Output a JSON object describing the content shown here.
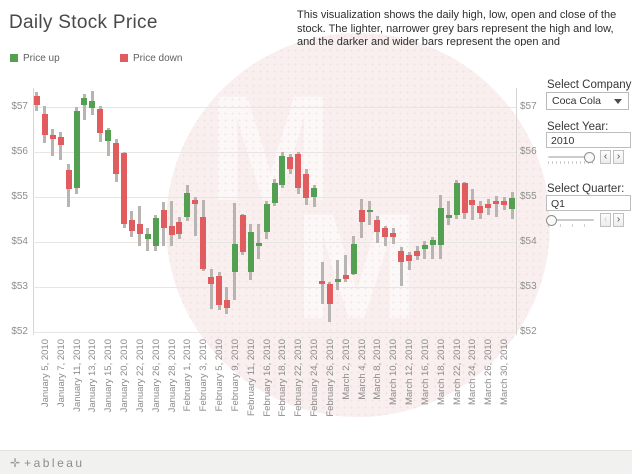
{
  "title": "Daily Stock Price",
  "description": "This visualization shows the daily high, low, open and close of the stock. The lighter, narrower grey bars represent the high and low, and the darker and wider bars represent the open and",
  "legend": {
    "up_label": "Price up",
    "down_label": "Price down"
  },
  "controls": {
    "company": {
      "label": "Select Company:",
      "value": "Coca Cola"
    },
    "year": {
      "label": "Select Year:",
      "value": "2010"
    },
    "quarter": {
      "label": "Select Quarter:",
      "value": "Q1"
    }
  },
  "icons": {
    "chevron_left": "‹",
    "chevron_right": "›"
  },
  "watermark": {
    "letter": "M"
  },
  "footer": {
    "logo_mark": "✛",
    "logo_word": "+ableau"
  },
  "chart_data": {
    "type": "candlestick",
    "title": "Daily Stock Price",
    "xlabel": "",
    "ylabel": "",
    "grid": true,
    "ylim": [
      51.9,
      57.6
    ],
    "y_ticks": [
      "$57",
      "$56",
      "$55",
      "$54",
      "$53",
      "$52"
    ],
    "colors": {
      "up": "#53a053",
      "down": "#e05c5e",
      "high_low": "#b8b4b1"
    },
    "legend": [
      {
        "label": "Price up",
        "color": "#53a053"
      },
      {
        "label": "Price down",
        "color": "#e05c5e"
      }
    ],
    "x_tick_labels": [
      "January 5, 2010",
      "January 7, 2010",
      "January 11, 2010",
      "January 13, 2010",
      "January 15, 2010",
      "January 20, 2010",
      "January 22, 2010",
      "January 26, 2010",
      "January 28, 2010",
      "February 1, 2010",
      "February 3, 2010",
      "February 5, 2010",
      "February 9, 2010",
      "February 11, 2010",
      "February 16, 2010",
      "February 18, 2010",
      "February 22, 2010",
      "February 24, 2010",
      "February 26, 2010",
      "March 2, 2010",
      "March 4, 2010",
      "March 8, 2010",
      "March 10, 2010",
      "March 12, 2010",
      "March 16, 2010",
      "March 18, 2010",
      "March 22, 2010",
      "March 24, 2010",
      "March 26, 2010",
      "March 30, 2010"
    ],
    "candles": [
      {
        "date": "January 4, 2010",
        "open": 57.24,
        "high": 57.33,
        "low": 56.91,
        "close": 57.04
      },
      {
        "date": "January 5, 2010",
        "open": 56.84,
        "high": 57.02,
        "low": 56.18,
        "close": 56.36
      },
      {
        "date": "January 6, 2010",
        "open": 56.37,
        "high": 56.5,
        "low": 55.9,
        "close": 56.27
      },
      {
        "date": "January 7, 2010",
        "open": 56.33,
        "high": 56.43,
        "low": 55.8,
        "close": 56.15
      },
      {
        "date": "January 8, 2010",
        "open": 55.58,
        "high": 55.73,
        "low": 54.76,
        "close": 55.17
      },
      {
        "date": "January 11, 2010",
        "open": 55.18,
        "high": 57.0,
        "low": 55.05,
        "close": 56.9
      },
      {
        "date": "January 12, 2010",
        "open": 57.04,
        "high": 57.28,
        "low": 56.7,
        "close": 57.2
      },
      {
        "date": "January 13, 2010",
        "open": 56.97,
        "high": 57.34,
        "low": 56.8,
        "close": 57.13
      },
      {
        "date": "January 14, 2010",
        "open": 56.94,
        "high": 57.02,
        "low": 56.2,
        "close": 56.4
      },
      {
        "date": "January 15, 2010",
        "open": 56.24,
        "high": 56.52,
        "low": 55.9,
        "close": 56.47
      },
      {
        "date": "January 19, 2010",
        "open": 56.18,
        "high": 56.27,
        "low": 55.32,
        "close": 55.5
      },
      {
        "date": "January 20, 2010",
        "open": 55.96,
        "high": 56.0,
        "low": 54.3,
        "close": 54.39
      },
      {
        "date": "January 21, 2010",
        "open": 54.47,
        "high": 54.67,
        "low": 54.11,
        "close": 54.24
      },
      {
        "date": "January 22, 2010",
        "open": 54.39,
        "high": 54.78,
        "low": 53.89,
        "close": 54.16
      },
      {
        "date": "January 25, 2010",
        "open": 54.05,
        "high": 54.31,
        "low": 53.78,
        "close": 54.16
      },
      {
        "date": "January 26, 2010",
        "open": 53.89,
        "high": 54.6,
        "low": 53.8,
        "close": 54.52
      },
      {
        "date": "January 27, 2010",
        "open": 54.71,
        "high": 54.87,
        "low": 53.89,
        "close": 54.31
      },
      {
        "date": "January 28, 2010",
        "open": 54.35,
        "high": 54.91,
        "low": 53.91,
        "close": 54.15
      },
      {
        "date": "January 29, 2010",
        "open": 54.44,
        "high": 54.55,
        "low": 54.05,
        "close": 54.16
      },
      {
        "date": "February 1, 2010",
        "open": 54.54,
        "high": 55.25,
        "low": 54.45,
        "close": 55.07
      },
      {
        "date": "February 2, 2010",
        "open": 54.92,
        "high": 54.98,
        "low": 54.13,
        "close": 54.83
      },
      {
        "date": "February 3, 2010",
        "open": 54.54,
        "high": 54.93,
        "low": 53.35,
        "close": 53.39
      },
      {
        "date": "February 4, 2010",
        "open": 53.21,
        "high": 53.39,
        "low": 52.5,
        "close": 53.06
      },
      {
        "date": "February 5, 2010",
        "open": 53.24,
        "high": 53.32,
        "low": 52.47,
        "close": 52.58
      },
      {
        "date": "February 8, 2010",
        "open": 52.7,
        "high": 53.0,
        "low": 52.4,
        "close": 52.52
      },
      {
        "date": "February 9, 2010",
        "open": 53.33,
        "high": 54.85,
        "low": 52.7,
        "close": 53.94
      },
      {
        "date": "February 10, 2010",
        "open": 54.58,
        "high": 54.62,
        "low": 53.7,
        "close": 53.76
      },
      {
        "date": "February 11, 2010",
        "open": 53.33,
        "high": 54.4,
        "low": 53.15,
        "close": 54.21
      },
      {
        "date": "February 12, 2010",
        "open": 53.9,
        "high": 54.39,
        "low": 53.61,
        "close": 53.96
      },
      {
        "date": "February 16, 2010",
        "open": 54.21,
        "high": 54.9,
        "low": 54.05,
        "close": 54.84
      },
      {
        "date": "February 17, 2010",
        "open": 54.86,
        "high": 55.4,
        "low": 54.8,
        "close": 55.3
      },
      {
        "date": "February 18, 2010",
        "open": 55.25,
        "high": 55.98,
        "low": 55.18,
        "close": 55.9
      },
      {
        "date": "February 19, 2010",
        "open": 55.88,
        "high": 55.95,
        "low": 55.5,
        "close": 55.6
      },
      {
        "date": "February 22, 2010",
        "open": 55.95,
        "high": 56.0,
        "low": 55.05,
        "close": 55.18
      },
      {
        "date": "February 23, 2010",
        "open": 55.49,
        "high": 55.61,
        "low": 54.8,
        "close": 54.96
      },
      {
        "date": "February 24, 2010",
        "open": 54.99,
        "high": 55.26,
        "low": 54.76,
        "close": 55.19
      },
      {
        "date": "February 25, 2010",
        "open": 53.12,
        "high": 53.54,
        "low": 52.61,
        "close": 53.06
      },
      {
        "date": "February 26, 2010",
        "open": 53.06,
        "high": 53.11,
        "low": 52.21,
        "close": 52.61
      },
      {
        "date": "March 1, 2010",
        "open": 53.11,
        "high": 53.58,
        "low": 52.93,
        "close": 53.17
      },
      {
        "date": "March 2, 2010",
        "open": 53.26,
        "high": 53.69,
        "low": 53.1,
        "close": 53.16
      },
      {
        "date": "March 3, 2010",
        "open": 53.28,
        "high": 54.13,
        "low": 53.25,
        "close": 53.95
      },
      {
        "date": "March 4, 2010",
        "open": 54.69,
        "high": 54.95,
        "low": 54.07,
        "close": 54.43
      },
      {
        "date": "March 5, 2010",
        "open": 54.66,
        "high": 54.91,
        "low": 54.36,
        "close": 54.7
      },
      {
        "date": "March 8, 2010",
        "open": 54.48,
        "high": 54.56,
        "low": 53.96,
        "close": 54.22
      },
      {
        "date": "March 9, 2010",
        "open": 54.29,
        "high": 54.35,
        "low": 53.89,
        "close": 54.11
      },
      {
        "date": "March 10, 2010",
        "open": 54.2,
        "high": 54.3,
        "low": 53.95,
        "close": 54.1
      },
      {
        "date": "March 11, 2010",
        "open": 53.8,
        "high": 53.87,
        "low": 53.02,
        "close": 53.54
      },
      {
        "date": "March 12, 2010",
        "open": 53.69,
        "high": 53.77,
        "low": 53.36,
        "close": 53.56
      },
      {
        "date": "March 15, 2010",
        "open": 53.8,
        "high": 53.91,
        "low": 53.58,
        "close": 53.67
      },
      {
        "date": "March 16, 2010",
        "open": 53.84,
        "high": 54.02,
        "low": 53.62,
        "close": 53.93
      },
      {
        "date": "March 17, 2010",
        "open": 53.93,
        "high": 54.1,
        "low": 53.62,
        "close": 54.04
      },
      {
        "date": "March 18, 2010",
        "open": 53.93,
        "high": 55.04,
        "low": 53.6,
        "close": 54.74
      },
      {
        "date": "March 19, 2010",
        "open": 54.53,
        "high": 54.89,
        "low": 54.37,
        "close": 54.58
      },
      {
        "date": "March 22, 2010",
        "open": 54.59,
        "high": 55.36,
        "low": 54.49,
        "close": 55.3
      },
      {
        "date": "March 23, 2010",
        "open": 55.3,
        "high": 55.33,
        "low": 54.49,
        "close": 54.63
      },
      {
        "date": "March 24, 2010",
        "open": 54.93,
        "high": 55.17,
        "low": 54.48,
        "close": 54.8
      },
      {
        "date": "March 25, 2010",
        "open": 54.8,
        "high": 54.91,
        "low": 54.5,
        "close": 54.64
      },
      {
        "date": "March 26, 2010",
        "open": 54.84,
        "high": 54.95,
        "low": 54.58,
        "close": 54.74
      },
      {
        "date": "March 29, 2010",
        "open": 54.89,
        "high": 55.02,
        "low": 54.54,
        "close": 54.84
      },
      {
        "date": "March 30, 2010",
        "open": 54.91,
        "high": 54.98,
        "low": 54.69,
        "close": 54.81
      },
      {
        "date": "March 31, 2010",
        "open": 54.72,
        "high": 55.1,
        "low": 54.5,
        "close": 54.96
      }
    ]
  }
}
